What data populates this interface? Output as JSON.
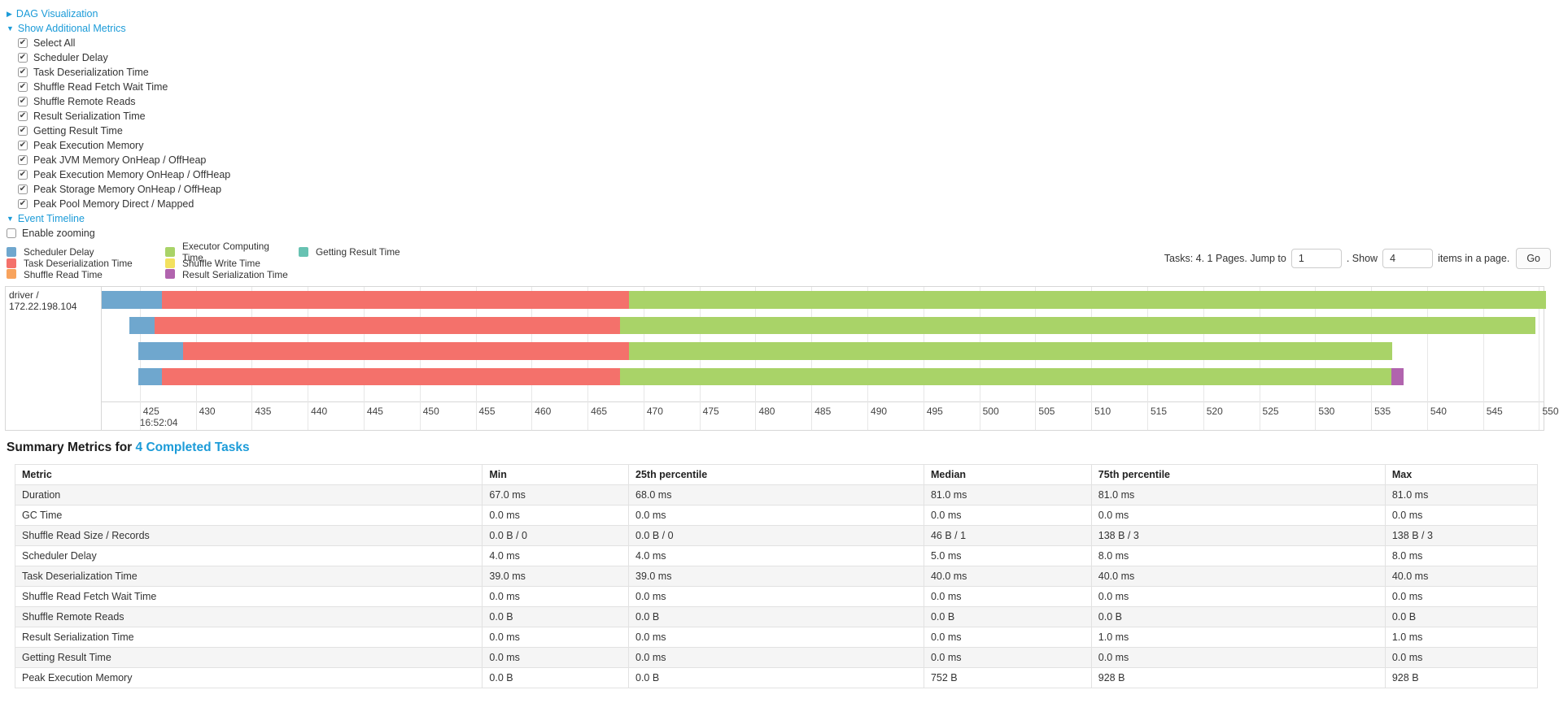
{
  "colors": {
    "link": "#1b9bd8",
    "scheduler_delay": "#6FA7CE",
    "task_deserialization": "#F4716B",
    "shuffle_read": "#F8A35D",
    "executor_computing": "#A9D368",
    "shuffle_write": "#F3E15F",
    "result_serialization": "#B164AE",
    "getting_result": "#67C2B2"
  },
  "controls": {
    "dag_label": "DAG Visualization",
    "metrics_label": "Show Additional Metrics",
    "checkboxes": [
      {
        "label": "Select All",
        "checked": true
      },
      {
        "label": "Scheduler Delay",
        "checked": true
      },
      {
        "label": "Task Deserialization Time",
        "checked": true
      },
      {
        "label": "Shuffle Read Fetch Wait Time",
        "checked": true
      },
      {
        "label": "Shuffle Remote Reads",
        "checked": true
      },
      {
        "label": "Result Serialization Time",
        "checked": true
      },
      {
        "label": "Getting Result Time",
        "checked": true
      },
      {
        "label": "Peak Execution Memory",
        "checked": true
      },
      {
        "label": "Peak JVM Memory OnHeap / OffHeap",
        "checked": true
      },
      {
        "label": "Peak Execution Memory OnHeap / OffHeap",
        "checked": true
      },
      {
        "label": "Peak Storage Memory OnHeap / OffHeap",
        "checked": true
      },
      {
        "label": "Peak Pool Memory Direct / Mapped",
        "checked": true
      }
    ],
    "event_timeline_label": "Event Timeline",
    "enable_zooming": {
      "label": "Enable zooming",
      "checked": false
    }
  },
  "legend": {
    "columns": [
      [
        {
          "key": "scheduler_delay",
          "label": "Scheduler Delay"
        },
        {
          "key": "task_deserialization",
          "label": "Task Deserialization Time"
        },
        {
          "key": "shuffle_read",
          "label": "Shuffle Read Time"
        }
      ],
      [
        {
          "key": "executor_computing",
          "label": "Executor Computing Time"
        },
        {
          "key": "shuffle_write",
          "label": "Shuffle Write Time"
        },
        {
          "key": "result_serialization",
          "label": "Result Serialization Time"
        }
      ],
      [
        {
          "key": "getting_result",
          "label": "Getting Result Time"
        }
      ]
    ]
  },
  "pagination": {
    "text_before": "Tasks: 4. 1 Pages. Jump to",
    "jump_value": "1",
    "text_mid": ". Show",
    "show_value": "4",
    "text_after": "items in a page.",
    "go_label": "Go"
  },
  "chart_data": {
    "type": "timeline-gantt",
    "row_label": "driver / 172.22.198.104",
    "x_axis": {
      "domain_min": 421.6,
      "domain_max": 550.4,
      "ticks": [
        425,
        430,
        435,
        440,
        445,
        450,
        455,
        460,
        465,
        470,
        475,
        480,
        485,
        490,
        495,
        500,
        505,
        510,
        515,
        520,
        525,
        530,
        535,
        540,
        545,
        550
      ],
      "time_label": "16:52:04",
      "time_label_tick": 425
    },
    "tasks": [
      {
        "segments": [
          {
            "key": "scheduler_delay",
            "from": 421.6,
            "to": 427.0
          },
          {
            "key": "task_deserialization",
            "from": 427.0,
            "to": 468.7
          },
          {
            "key": "executor_computing",
            "from": 468.7,
            "to": 550.6
          }
        ]
      },
      {
        "segments": [
          {
            "key": "scheduler_delay",
            "from": 424.1,
            "to": 426.3
          },
          {
            "key": "task_deserialization",
            "from": 426.3,
            "to": 467.9
          },
          {
            "key": "executor_computing",
            "from": 467.9,
            "to": 549.7
          }
        ]
      },
      {
        "segments": [
          {
            "key": "scheduler_delay",
            "from": 424.9,
            "to": 428.9
          },
          {
            "key": "task_deserialization",
            "from": 428.9,
            "to": 468.7
          },
          {
            "key": "executor_computing",
            "from": 468.7,
            "to": 536.9
          }
        ]
      },
      {
        "segments": [
          {
            "key": "scheduler_delay",
            "from": 424.9,
            "to": 427.0
          },
          {
            "key": "task_deserialization",
            "from": 427.0,
            "to": 467.9
          },
          {
            "key": "executor_computing",
            "from": 467.9,
            "to": 536.8
          },
          {
            "key": "result_serialization",
            "from": 536.8,
            "to": 537.9
          }
        ]
      }
    ]
  },
  "summary": {
    "title_prefix": "Summary Metrics for",
    "title_link": "4 Completed Tasks",
    "columns": [
      "Metric",
      "Min",
      "25th percentile",
      "Median",
      "75th percentile",
      "Max"
    ],
    "col_widths_pct": [
      30.7,
      9.6,
      19.4,
      11.0,
      19.3,
      10.0
    ],
    "rows": [
      {
        "metric": "Duration",
        "values": [
          "67.0 ms",
          "68.0 ms",
          "81.0 ms",
          "81.0 ms",
          "81.0 ms"
        ]
      },
      {
        "metric": "GC Time",
        "values": [
          "0.0 ms",
          "0.0 ms",
          "0.0 ms",
          "0.0 ms",
          "0.0 ms"
        ]
      },
      {
        "metric": "Shuffle Read Size / Records",
        "values": [
          "0.0 B / 0",
          "0.0 B / 0",
          "46 B / 1",
          "138 B / 3",
          "138 B / 3"
        ]
      },
      {
        "metric": "Scheduler Delay",
        "values": [
          "4.0 ms",
          "4.0 ms",
          "5.0 ms",
          "8.0 ms",
          "8.0 ms"
        ]
      },
      {
        "metric": "Task Deserialization Time",
        "values": [
          "39.0 ms",
          "39.0 ms",
          "40.0 ms",
          "40.0 ms",
          "40.0 ms"
        ]
      },
      {
        "metric": "Shuffle Read Fetch Wait Time",
        "values": [
          "0.0 ms",
          "0.0 ms",
          "0.0 ms",
          "0.0 ms",
          "0.0 ms"
        ]
      },
      {
        "metric": "Shuffle Remote Reads",
        "values": [
          "0.0 B",
          "0.0 B",
          "0.0 B",
          "0.0 B",
          "0.0 B"
        ]
      },
      {
        "metric": "Result Serialization Time",
        "values": [
          "0.0 ms",
          "0.0 ms",
          "0.0 ms",
          "1.0 ms",
          "1.0 ms"
        ]
      },
      {
        "metric": "Getting Result Time",
        "values": [
          "0.0 ms",
          "0.0 ms",
          "0.0 ms",
          "0.0 ms",
          "0.0 ms"
        ]
      },
      {
        "metric": "Peak Execution Memory",
        "values": [
          "0.0 B",
          "0.0 B",
          "752 B",
          "928 B",
          "928 B"
        ]
      }
    ]
  }
}
